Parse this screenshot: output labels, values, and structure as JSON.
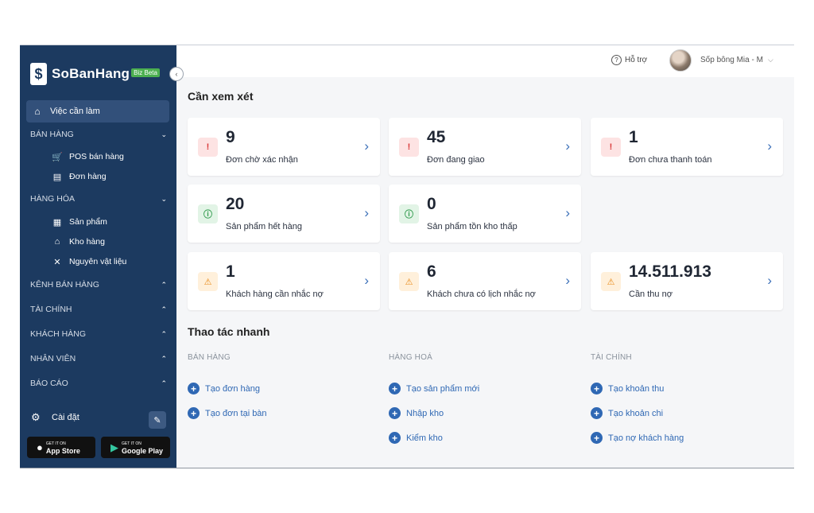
{
  "sidebar": {
    "logo": {
      "mark": "$",
      "name": "SoBanHang",
      "badge": "Biz Beta"
    },
    "active_item": {
      "label": "Việc cần làm",
      "icon": "home-icon"
    },
    "sections": {
      "ban_hang": {
        "label": "BÁN HÀNG",
        "items": [
          {
            "label": "POS bán hàng",
            "icon": "cart-icon"
          },
          {
            "label": "Đơn hàng",
            "icon": "document-icon"
          }
        ]
      },
      "hang_hoa": {
        "label": "HÀNG HÓA",
        "items": [
          {
            "label": "Sản phẩm",
            "icon": "box-icon"
          },
          {
            "label": "Kho hàng",
            "icon": "warehouse-icon"
          },
          {
            "label": "Nguyên vật liệu",
            "icon": "utensils-icon"
          }
        ]
      },
      "kenh": {
        "label": "KÊNH BÁN HÀNG"
      },
      "tai_chinh": {
        "label": "TÀI CHÍNH"
      },
      "khach_hang": {
        "label": "KHÁCH HÀNG"
      },
      "nhan_vien": {
        "label": "NHÂN VIÊN"
      },
      "bao_cao": {
        "label": "BÁO CÁO"
      }
    },
    "settings_label": "Cài đặt",
    "app_store": {
      "small": "GET IT ON",
      "big": "App Store"
    },
    "google_play": {
      "small": "GET IT ON",
      "big": "Google Play"
    }
  },
  "header": {
    "help_label": "Hỗ trợ",
    "user_name": "Sốp bông Mia - M"
  },
  "review": {
    "title": "Cần xem xét",
    "cards": [
      {
        "value": "9",
        "label": "Đơn chờ xác nhận",
        "tone": "red"
      },
      {
        "value": "45",
        "label": "Đơn đang giao",
        "tone": "red"
      },
      {
        "value": "1",
        "label": "Đơn chưa thanh toán",
        "tone": "red"
      },
      {
        "value": "20",
        "label": "Sản phẩm hết hàng",
        "tone": "green"
      },
      {
        "value": "0",
        "label": "Sản phẩm tồn kho thấp",
        "tone": "green"
      },
      {
        "value": "1",
        "label": "Khách hàng cần nhắc nợ",
        "tone": "orange"
      },
      {
        "value": "6",
        "label": "Khách chưa có lịch nhắc nợ",
        "tone": "orange"
      },
      {
        "value": "14.511.913",
        "label": "Cần thu nợ",
        "tone": "orange"
      }
    ]
  },
  "quick": {
    "title": "Thao tác nhanh",
    "columns": [
      {
        "label": "BÁN HÀNG",
        "links": [
          "Tạo đơn hàng",
          "Tạo đơn tại bàn"
        ]
      },
      {
        "label": "HÀNG HOÁ",
        "links": [
          "Tạo sản phẩm mới",
          "Nhập kho",
          "Kiểm kho"
        ]
      },
      {
        "label": "TÀI CHÍNH",
        "links": [
          "Tạo khoản thu",
          "Tạo khoản chi",
          "Tạo nợ khách hàng"
        ]
      }
    ]
  },
  "colors": {
    "sidebar_bg": "#1c3a60",
    "accent": "#2f68b4",
    "danger": "#d93a3a",
    "success": "#2e9a4b",
    "warning": "#e88a1a"
  }
}
